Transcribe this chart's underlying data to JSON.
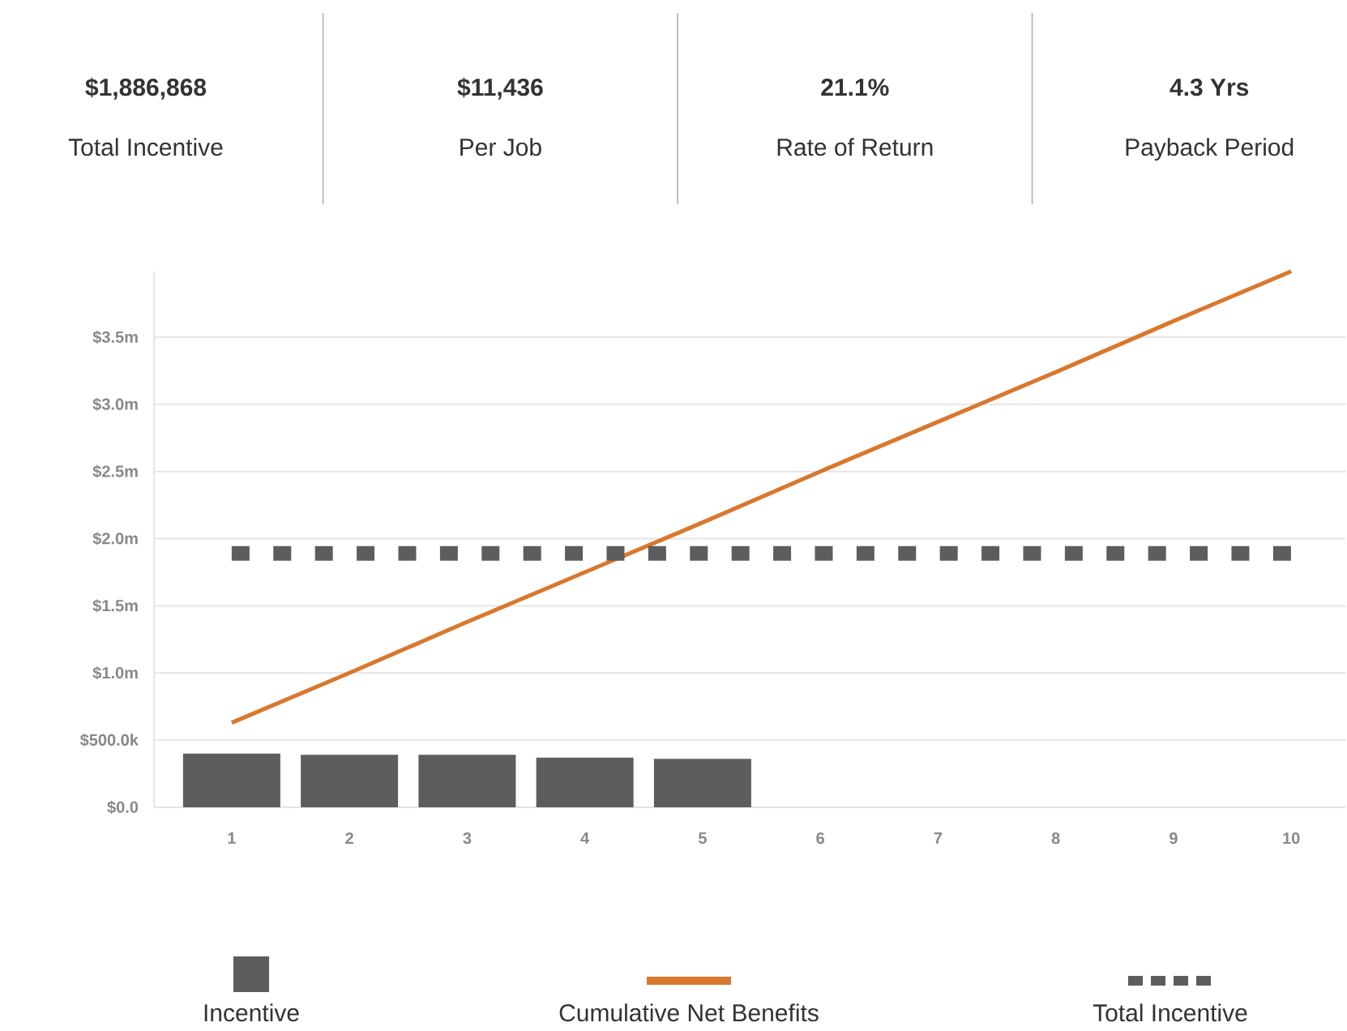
{
  "chart_data": {
    "type": "bar",
    "annotations": [
      "$1,886,868",
      "Total Incentive",
      "$11,436",
      "Per Job",
      "21.1%",
      "Rate of Return",
      "4.3 Yrs",
      "Payback Period"
    ],
    "categories": [
      "1",
      "2",
      "3",
      "4",
      "5",
      "6",
      "7",
      "8",
      "9",
      "10"
    ],
    "series": [
      {
        "name": "Incentive",
        "color": "#5c5d5f",
        "values": [
          400000,
          390000,
          390000,
          370000,
          360000,
          null,
          null,
          null,
          null,
          null
        ]
      },
      {
        "name": "Cumulative Net Benefits",
        "type": "line",
        "color": "#d9782d",
        "line_style": "solid",
        "values": [
          630000,
          1000000,
          1380000,
          1750000,
          2120000,
          2500000,
          2870000,
          3240000,
          3620000,
          3990000
        ]
      },
      {
        "name": "Total Incentive",
        "type": "line",
        "color": "#5c5d5f",
        "line_style": "dashed",
        "values": [
          1890000,
          1890000,
          1890000,
          1890000,
          1890000,
          1890000,
          1890000,
          1890000,
          1890000,
          1890000
        ]
      }
    ],
    "yticks": [
      {
        "value": 0,
        "label": "$0.0"
      },
      {
        "value": 500000,
        "label": "$500.0k"
      },
      {
        "value": 1000000,
        "label": "$1.0m"
      },
      {
        "value": 1500000,
        "label": "$1.5m"
      },
      {
        "value": 2000000,
        "label": "$2.0m"
      },
      {
        "value": 2500000,
        "label": "$2.5m"
      },
      {
        "value": 3000000,
        "label": "$3.0m"
      },
      {
        "value": 3500000,
        "label": "$3.5m"
      }
    ],
    "ylim": [
      0,
      3990000
    ],
    "grid": "y",
    "legend": "bottom",
    "marker": "none"
  }
}
